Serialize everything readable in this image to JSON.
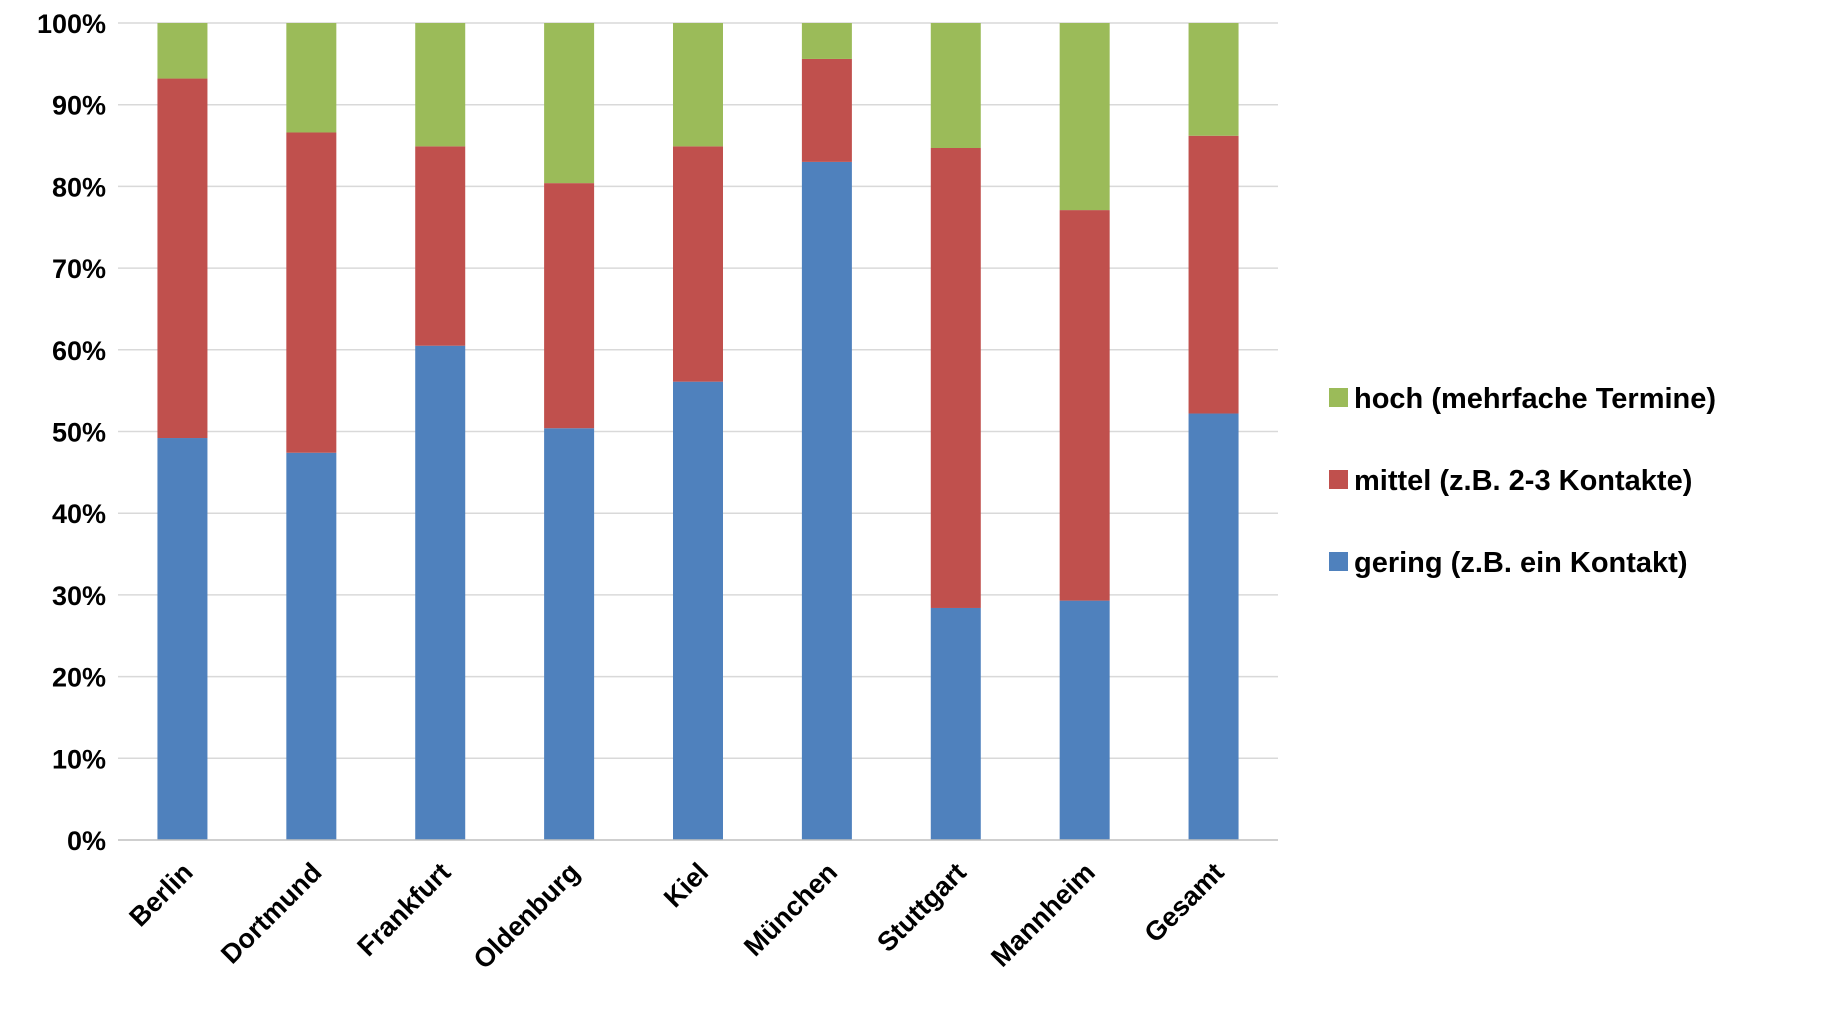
{
  "chart_data": {
    "type": "bar",
    "stacked": true,
    "percent": true,
    "categories": [
      "Berlin",
      "Dortmund",
      "Frankfurt",
      "Oldenburg",
      "Kiel",
      "München",
      "Stuttgart",
      "Mannheim",
      "Gesamt"
    ],
    "series": [
      {
        "name": "gering (z.B. ein Kontakt)",
        "color": "#4f81bd",
        "values": [
          49.2,
          47.4,
          60.5,
          50.4,
          56.1,
          83.0,
          28.4,
          29.3,
          52.2
        ]
      },
      {
        "name": "mittel (z.B. 2-3 Kontakte)",
        "color": "#c0504d",
        "values": [
          44.0,
          39.2,
          24.4,
          30.0,
          28.8,
          12.6,
          56.3,
          47.8,
          34.0
        ]
      },
      {
        "name": "hoch (mehrfache Termine)",
        "color": "#9bbb59",
        "values": [
          6.8,
          13.4,
          15.1,
          19.6,
          15.1,
          4.4,
          15.3,
          22.9,
          13.8
        ]
      }
    ],
    "y_ticks": [
      "0%",
      "10%",
      "20%",
      "30%",
      "40%",
      "50%",
      "60%",
      "70%",
      "80%",
      "90%",
      "100%"
    ],
    "ylim": [
      0,
      100
    ],
    "grid": true,
    "legend_placement": "right",
    "legend_order": [
      "hoch (mehrfache Termine)",
      "mittel (z.B. 2-3 Kontakte)",
      "gering (z.B. ein Kontakt)"
    ],
    "title": "",
    "xlabel": "",
    "ylabel": ""
  }
}
